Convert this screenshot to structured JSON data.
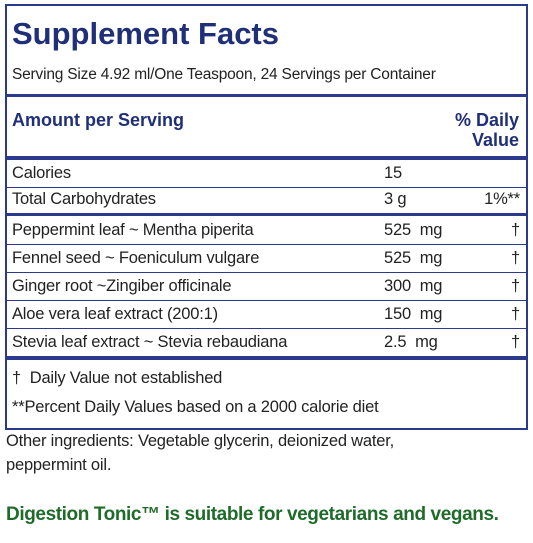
{
  "header": {
    "title": "Supplement Facts",
    "serving": "Serving Size 4.92 ml/One Teaspoon, 24 Servings per Container"
  },
  "table": {
    "amount_header": "Amount per Serving",
    "dv_header_1": "% Daily",
    "dv_header_2": "Value",
    "rows": [
      [
        "Calories",
        "15",
        null
      ],
      [
        "Total Carbohydrates",
        "3 g",
        "1%**"
      ],
      [
        "Peppermint leaf ~ Mentha piperita",
        "525  mg",
        "†"
      ],
      [
        "Fennel seed ~ Foeniculum vulgare",
        "525  mg",
        "†"
      ],
      [
        "Ginger root ~Zingiber officinale",
        "300  mg",
        "†"
      ],
      [
        "Aloe vera leaf extract (200:1)",
        "150  mg",
        "†"
      ],
      [
        "Stevia leaf extract ~ Stevia rebaudiana",
        "2.5  mg",
        "†"
      ]
    ]
  },
  "footnotes": [
    "†  Daily Value not established",
    "**Percent Daily Values based on a 2000 calorie diet"
  ],
  "other_ingredients": [
    "Other ingredients: Vegetable glycerin, deionized water,",
    "peppermint oil."
  ],
  "note": "Digestion Tonic™ is suitable for vegetarians and vegans."
}
